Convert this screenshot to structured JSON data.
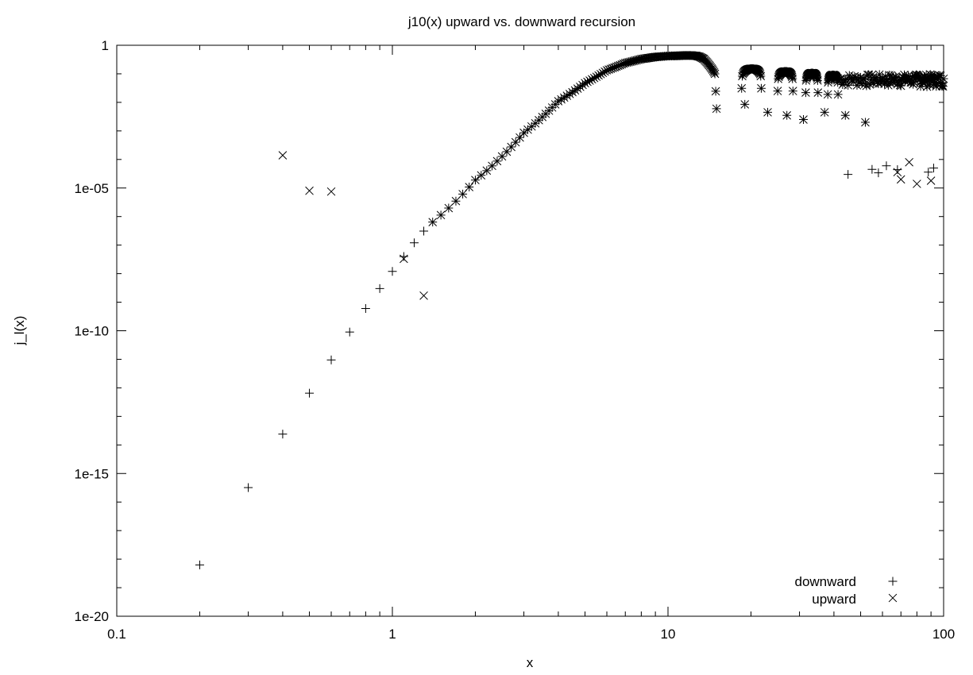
{
  "chart_data": {
    "type": "scatter",
    "title": "j10(x) upward vs. downward recursion",
    "xlabel": "x",
    "ylabel": "j_l(x)",
    "x_scale": "log",
    "y_scale": "log",
    "xlim": [
      0.1,
      100
    ],
    "ylim": [
      1e-20,
      1
    ],
    "x_ticks": [
      {
        "value": 0.1,
        "label": "0.1"
      },
      {
        "value": 1,
        "label": "1"
      },
      {
        "value": 10,
        "label": "10"
      },
      {
        "value": 100,
        "label": "100"
      }
    ],
    "y_ticks": [
      {
        "value": 1e-20,
        "label": "1e-20"
      },
      {
        "value": 1e-15,
        "label": "1e-15"
      },
      {
        "value": 1e-10,
        "label": "1e-10"
      },
      {
        "value": 1e-05,
        "label": "1e-05"
      },
      {
        "value": 1,
        "label": "1"
      }
    ],
    "legend_position": "bottom-right",
    "grid": false,
    "series": [
      {
        "name": "downward",
        "marker": "plus",
        "points": [
          [
            0.2,
            6.3e-19
          ],
          [
            0.3,
            3.2e-16
          ],
          [
            0.4,
            2.4e-14
          ],
          [
            0.5,
            6.5e-13
          ],
          [
            0.6,
            9.5e-12
          ],
          [
            0.7,
            9e-11
          ],
          [
            0.8,
            6e-10
          ],
          [
            0.9,
            3e-09
          ],
          [
            1.0,
            1.2e-08
          ],
          [
            1.1,
            4e-08
          ],
          [
            1.2,
            1.2e-07
          ],
          [
            1.3,
            3.1e-07
          ],
          [
            45,
            3e-05
          ],
          [
            55,
            4.5e-05
          ],
          [
            58,
            3.4e-05
          ],
          [
            62,
            6e-05
          ],
          [
            68,
            4.4e-05
          ],
          [
            88,
            3.6e-05
          ],
          [
            92,
            5e-05
          ]
        ]
      },
      {
        "name": "upward",
        "marker": "cross",
        "points": [
          [
            0.4,
            0.00014
          ],
          [
            0.5,
            8e-06
          ],
          [
            0.6,
            7.5e-06
          ],
          [
            1.1,
            3.3e-08
          ],
          [
            1.3,
            1.7e-09
          ],
          [
            68,
            3.6e-05
          ],
          [
            70,
            2e-05
          ],
          [
            75,
            8e-05
          ],
          [
            80,
            1.4e-05
          ],
          [
            90,
            1.8e-05
          ]
        ]
      }
    ],
    "curve_samples": [
      [
        1.4,
        6.4e-07
      ],
      [
        2,
        1.9e-05
      ],
      [
        3,
        0.00086
      ],
      [
        4,
        0.011
      ],
      [
        5,
        0.047
      ],
      [
        6,
        0.133
      ],
      [
        7,
        0.24
      ],
      [
        8,
        0.33
      ],
      [
        9,
        0.39
      ],
      [
        10,
        0.42
      ],
      [
        11,
        0.43
      ],
      [
        11.5,
        0.44
      ],
      [
        12,
        0.44
      ],
      [
        12.6,
        0.43
      ],
      [
        13,
        0.4
      ],
      [
        13.5,
        0.33
      ],
      [
        14,
        0.22
      ],
      [
        14.5,
        0.14
      ],
      [
        14.8,
        0.1
      ],
      [
        15,
        0.006
      ]
    ],
    "side_lobes": [
      {
        "x_start": 18.5,
        "x_end": 21.8,
        "peak": 0.2
      },
      {
        "x_start": 25.0,
        "x_end": 28.4,
        "peak": 0.16
      },
      {
        "x_start": 31.6,
        "x_end": 35.0,
        "peak": 0.14
      },
      {
        "x_start": 38.0,
        "x_end": 41.4,
        "peak": 0.12
      }
    ],
    "dips": [
      [
        19,
        0.0085
      ],
      [
        23,
        0.0045
      ],
      [
        27,
        0.0035
      ],
      [
        31,
        0.0025
      ],
      [
        37,
        0.0045
      ],
      [
        44,
        0.0035
      ],
      [
        52,
        0.002
      ]
    ]
  }
}
